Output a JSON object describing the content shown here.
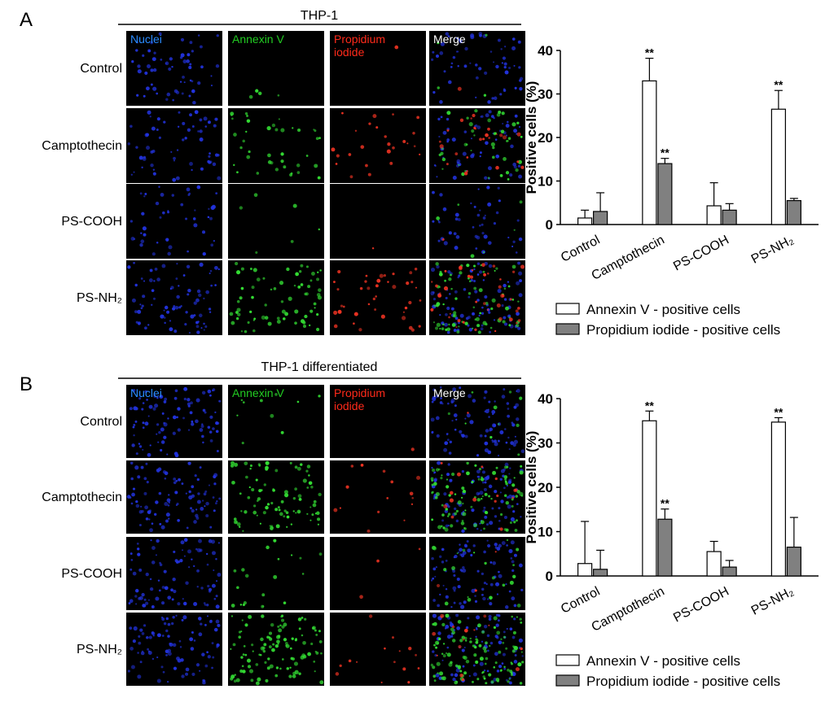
{
  "panels": [
    {
      "label": "A",
      "title": "THP-1",
      "channels": [
        {
          "name": [
            "Nuclei"
          ],
          "color": "#2a8cff"
        },
        {
          "name": [
            "Annexin V"
          ],
          "color": "#22cc22"
        },
        {
          "name": [
            "Propidium",
            "iodide"
          ],
          "color": "#ff2a1a"
        },
        {
          "name": [
            "Merge"
          ],
          "color": "#ffffff"
        }
      ],
      "rows": [
        "Control",
        "Camptothecin",
        "PS-COOH",
        "PS-NH₂"
      ]
    },
    {
      "label": "B",
      "title": "THP-1 differentiated",
      "channels": [
        {
          "name": [
            "Nuclei"
          ],
          "color": "#2a8cff"
        },
        {
          "name": [
            "Annexin V"
          ],
          "color": "#22cc22"
        },
        {
          "name": [
            "Propidium",
            "iodide"
          ],
          "color": "#ff2a1a"
        },
        {
          "name": [
            "Merge"
          ],
          "color": "#ffffff"
        }
      ],
      "rows": [
        "Control",
        "Camptothecin",
        "PS-COOH",
        "PS-NH₂"
      ]
    }
  ],
  "chart_data": [
    {
      "type": "bar",
      "ylabel": "Positive cells (%)",
      "categories": [
        "Control",
        "Camptothecin",
        "PS-COOH",
        "PS-NH₂"
      ],
      "ylim": [
        0,
        40
      ],
      "yticks": [
        0,
        10,
        20,
        30,
        40
      ],
      "series": [
        {
          "name": "Annexin V - positive cells",
          "color": "#ffffff",
          "values": [
            1.5,
            33,
            4.3,
            26.5
          ],
          "errors": [
            1.8,
            5.2,
            5.3,
            4.3
          ],
          "markers": [
            null,
            "**",
            null,
            "**"
          ]
        },
        {
          "name": "Propidium iodide - positive cells",
          "color": "#808080",
          "values": [
            3,
            14,
            3.3,
            5.5
          ],
          "errors": [
            4.3,
            1.2,
            1.5,
            0.5
          ],
          "markers": [
            null,
            "**",
            null,
            null
          ]
        }
      ]
    },
    {
      "type": "bar",
      "ylabel": "Positive cells (%)",
      "categories": [
        "Control",
        "Camptothecin",
        "PS-COOH",
        "PS-NH₂"
      ],
      "ylim": [
        0,
        40
      ],
      "yticks": [
        0,
        10,
        20,
        30,
        40
      ],
      "series": [
        {
          "name": "Annexin V - positive cells",
          "color": "#ffffff",
          "values": [
            2.8,
            35,
            5.5,
            34.7
          ],
          "errors": [
            9.5,
            2.2,
            2.3,
            1
          ],
          "markers": [
            null,
            "**",
            null,
            "**"
          ]
        },
        {
          "name": "Propidium iodide - positive cells",
          "color": "#808080",
          "values": [
            1.5,
            12.8,
            2,
            6.5
          ],
          "errors": [
            4.3,
            2.3,
            1.5,
            6.7
          ],
          "markers": [
            null,
            "**",
            null,
            null
          ]
        }
      ]
    }
  ]
}
